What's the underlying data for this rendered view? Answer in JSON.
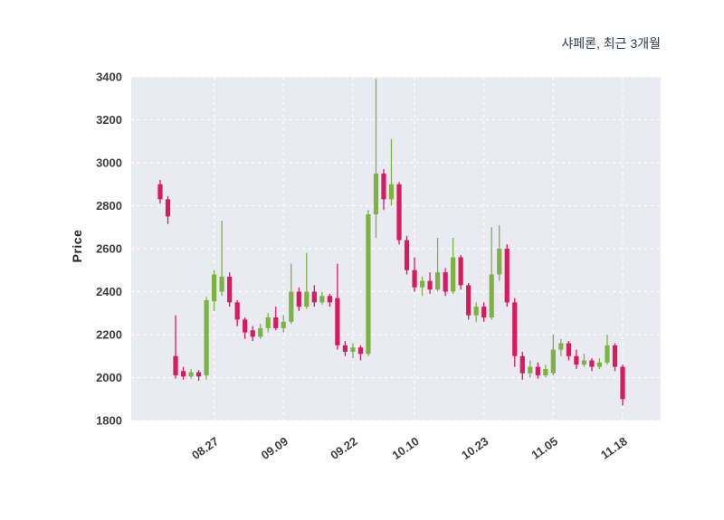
{
  "chart_data": {
    "type": "candlestick",
    "title": "샤페론, 최근 3개월",
    "ylabel": "Price",
    "ylim": [
      1800,
      3400
    ],
    "yticks": [
      1800,
      2000,
      2200,
      2400,
      2600,
      2800,
      3000,
      3200,
      3400
    ],
    "xticks": [
      {
        "label": "08.27",
        "index": 7
      },
      {
        "label": "09.09",
        "index": 16
      },
      {
        "label": "09.22",
        "index": 25
      },
      {
        "label": "10.10",
        "index": 33
      },
      {
        "label": "10.23",
        "index": 42
      },
      {
        "label": "11.05",
        "index": 51
      },
      {
        "label": "11.18",
        "index": 60
      }
    ],
    "grid": true,
    "legend": "none",
    "plot_bg": "#eaeaf2",
    "grid_color": "#ffffff",
    "up_color": "#7cb342",
    "down_color": "#d81b60",
    "tick_color": "#3d3d3d",
    "title_color": "#2f3b52",
    "candle_format": [
      "open",
      "high",
      "low",
      "close"
    ],
    "candles": [
      [
        2900,
        2920,
        2810,
        2830
      ],
      [
        2830,
        2845,
        2715,
        2750
      ],
      [
        2100,
        2290,
        1995,
        2010
      ],
      [
        2030,
        2050,
        1990,
        2005
      ],
      [
        2005,
        2040,
        1995,
        2025
      ],
      [
        2025,
        2035,
        1985,
        2005
      ],
      [
        2010,
        2375,
        1990,
        2360
      ],
      [
        2355,
        2500,
        2310,
        2480
      ],
      [
        2400,
        2730,
        2380,
        2470
      ],
      [
        2470,
        2490,
        2330,
        2350
      ],
      [
        2350,
        2360,
        2240,
        2270
      ],
      [
        2270,
        2280,
        2180,
        2210
      ],
      [
        2220,
        2240,
        2170,
        2190
      ],
      [
        2190,
        2250,
        2180,
        2230
      ],
      [
        2230,
        2300,
        2210,
        2280
      ],
      [
        2280,
        2330,
        2220,
        2230
      ],
      [
        2230,
        2290,
        2210,
        2260
      ],
      [
        2260,
        2530,
        2250,
        2400
      ],
      [
        2400,
        2420,
        2310,
        2330
      ],
      [
        2330,
        2580,
        2320,
        2400
      ],
      [
        2400,
        2430,
        2330,
        2350
      ],
      [
        2350,
        2400,
        2340,
        2380
      ],
      [
        2380,
        2390,
        2330,
        2350
      ],
      [
        2370,
        2530,
        2130,
        2150
      ],
      [
        2150,
        2170,
        2100,
        2120
      ],
      [
        2120,
        2160,
        2090,
        2140
      ],
      [
        2140,
        2150,
        2080,
        2110
      ],
      [
        2110,
        2780,
        2100,
        2760
      ],
      [
        2760,
        3390,
        2650,
        2950
      ],
      [
        2950,
        2970,
        2780,
        2830
      ],
      [
        2830,
        3110,
        2800,
        2900
      ],
      [
        2900,
        2910,
        2620,
        2640
      ],
      [
        2640,
        2660,
        2480,
        2500
      ],
      [
        2500,
        2560,
        2400,
        2420
      ],
      [
        2420,
        2470,
        2380,
        2450
      ],
      [
        2450,
        2490,
        2390,
        2410
      ],
      [
        2410,
        2650,
        2400,
        2490
      ],
      [
        2490,
        2510,
        2380,
        2400
      ],
      [
        2400,
        2650,
        2390,
        2560
      ],
      [
        2560,
        2570,
        2410,
        2430
      ],
      [
        2430,
        2440,
        2270,
        2290
      ],
      [
        2290,
        2350,
        2260,
        2330
      ],
      [
        2330,
        2350,
        2260,
        2280
      ],
      [
        2280,
        2700,
        2270,
        2480
      ],
      [
        2480,
        2710,
        2450,
        2600
      ],
      [
        2600,
        2620,
        2330,
        2350
      ],
      [
        2350,
        2370,
        2050,
        2100
      ],
      [
        2100,
        2120,
        1990,
        2020
      ],
      [
        2020,
        2080,
        2000,
        2050
      ],
      [
        2050,
        2070,
        1995,
        2010
      ],
      [
        2010,
        2060,
        2000,
        2040
      ],
      [
        2020,
        2200,
        2010,
        2130
      ],
      [
        2130,
        2180,
        2100,
        2160
      ],
      [
        2160,
        2170,
        2080,
        2100
      ],
      [
        2100,
        2130,
        2040,
        2060
      ],
      [
        2060,
        2110,
        2050,
        2080
      ],
      [
        2080,
        2090,
        2030,
        2050
      ],
      [
        2050,
        2090,
        2040,
        2070
      ],
      [
        2070,
        2200,
        2060,
        2150
      ],
      [
        2150,
        2160,
        2030,
        2050
      ],
      [
        2050,
        2060,
        1870,
        1900
      ]
    ]
  }
}
